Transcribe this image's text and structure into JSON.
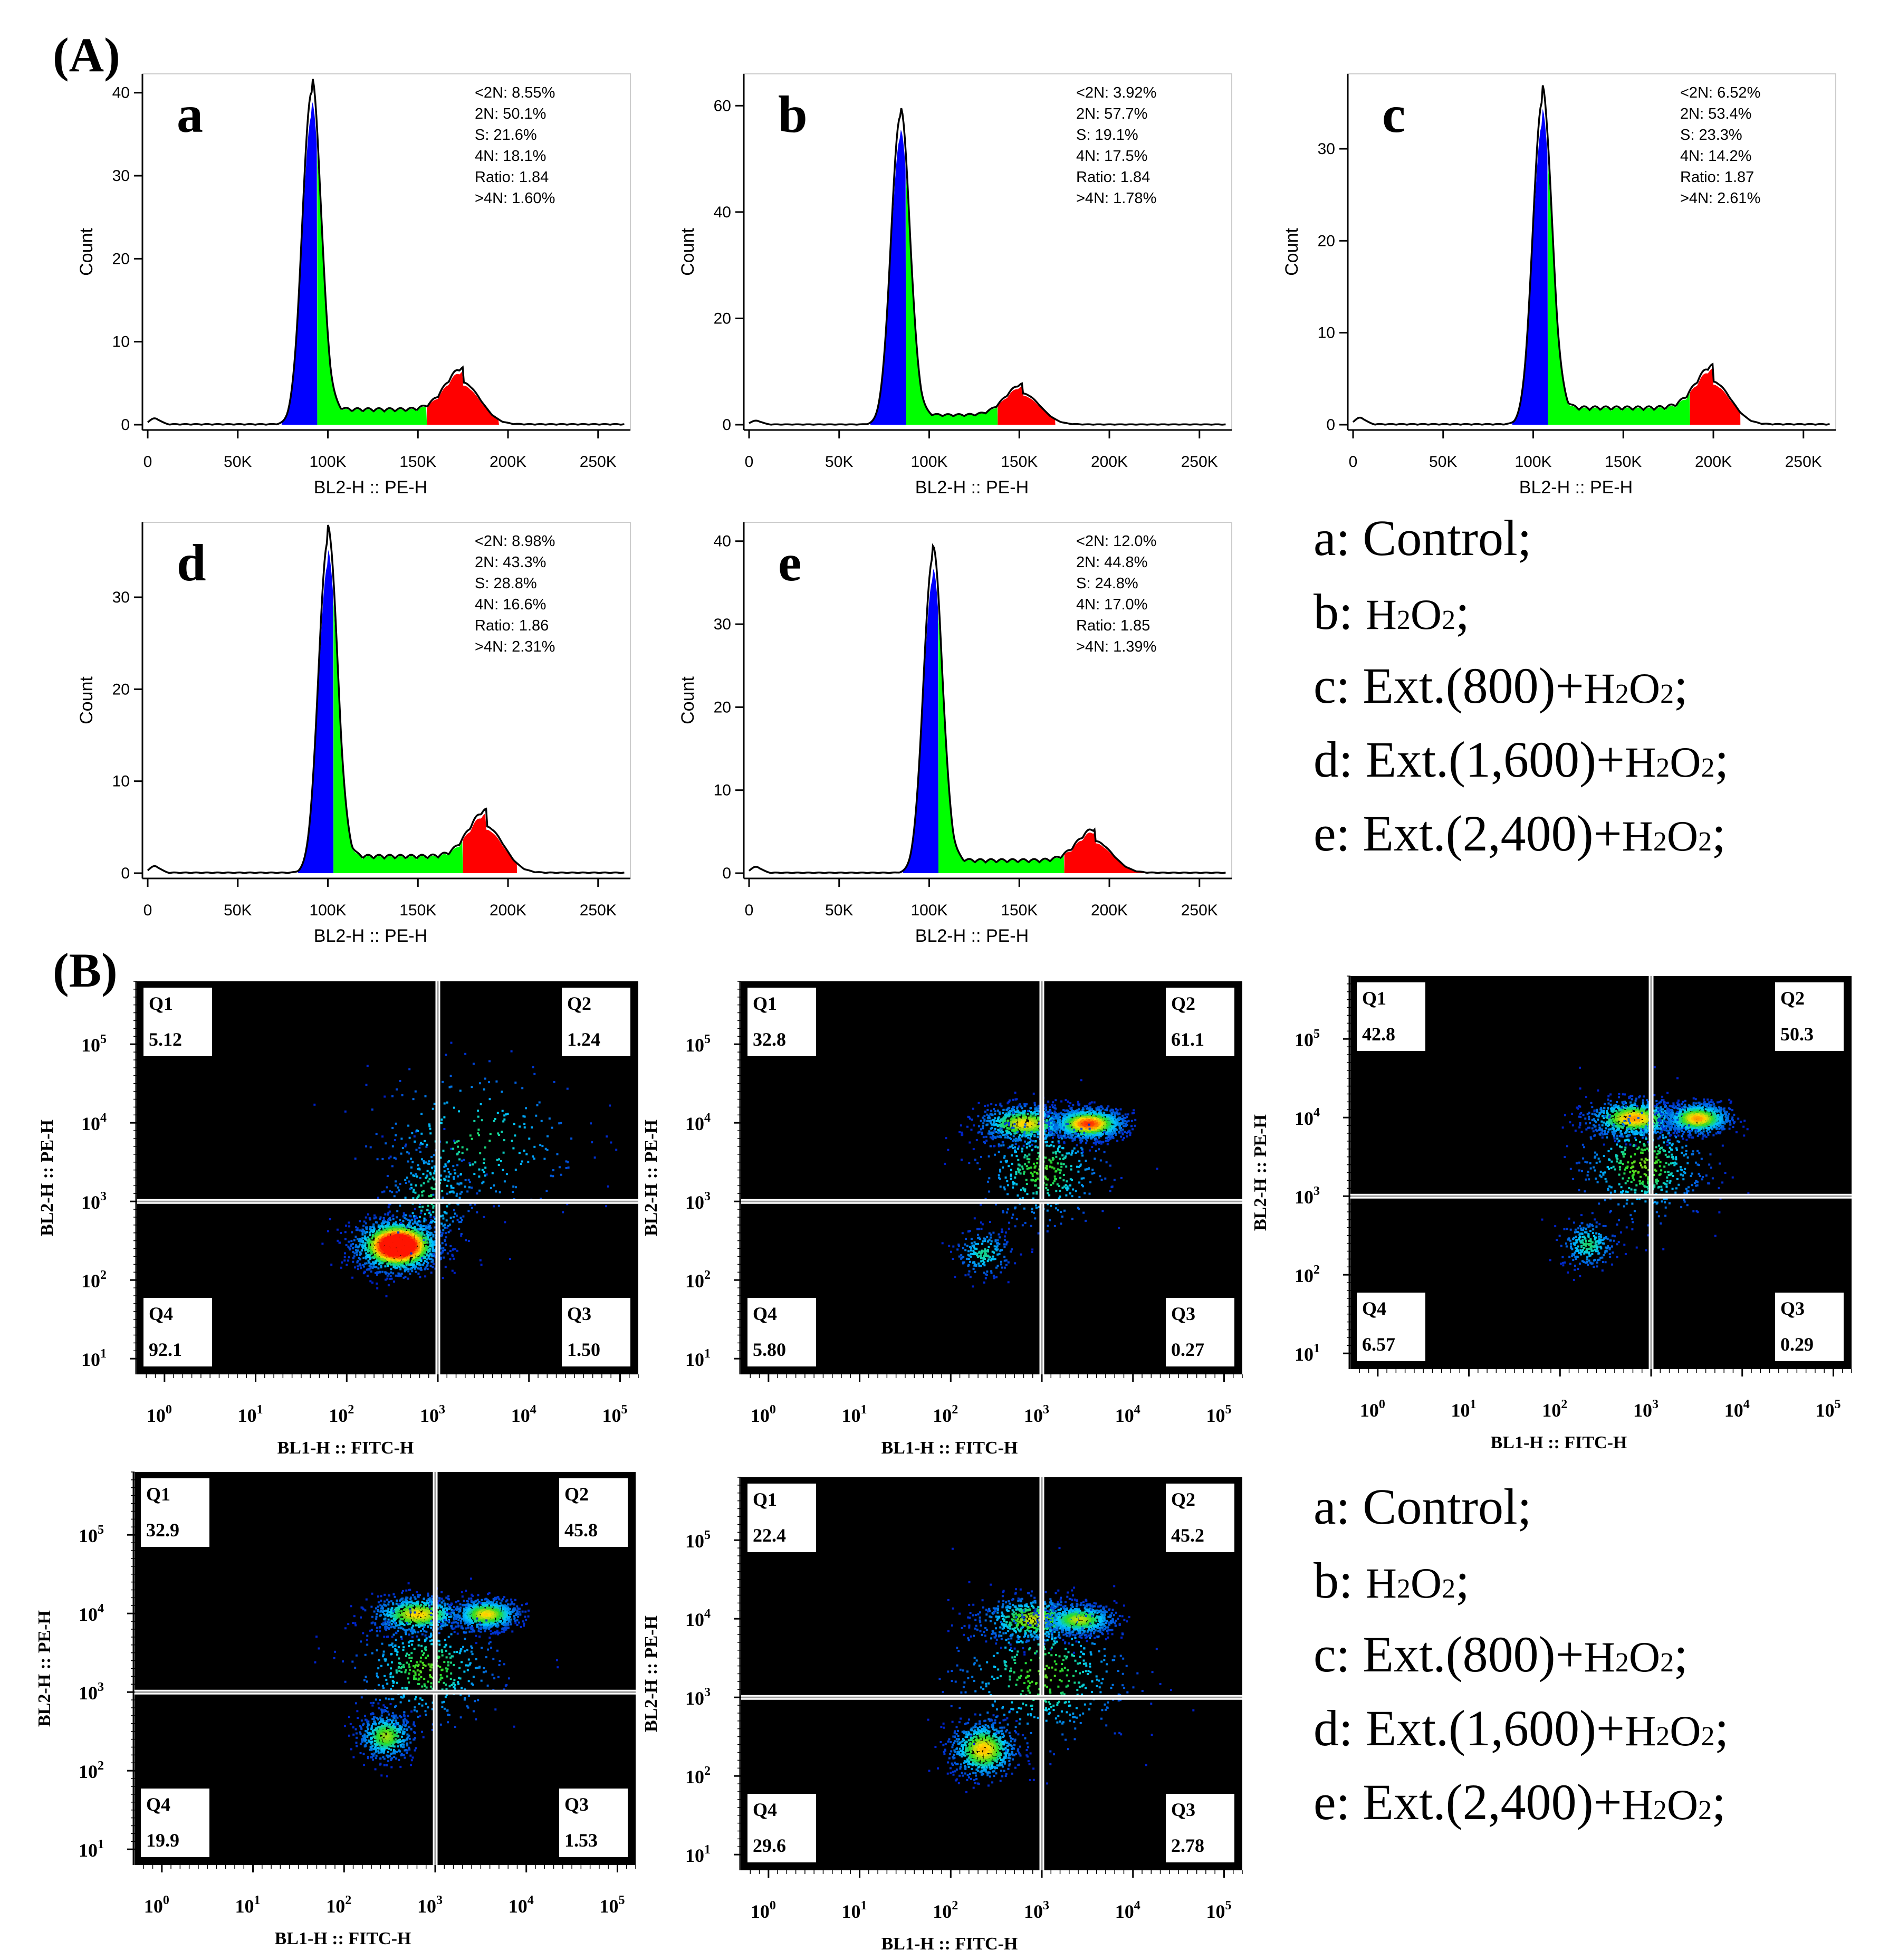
{
  "panel_A_label": "(A)",
  "panel_B_label": "(B)",
  "legend": [
    {
      "key": "a:",
      "text": "Control;",
      "formula": false
    },
    {
      "key": "b:",
      "text": "",
      "formula": true
    },
    {
      "key": "c:",
      "text": "Ext.(800)+",
      "formula": true
    },
    {
      "key": "d:",
      "text": "Ext.(1,600)+",
      "formula": true
    },
    {
      "key": "e:",
      "text": "Ext.(2,400)+",
      "formula": true
    }
  ],
  "chart_data": {
    "histograms": {
      "type": "area",
      "x_axis_label": "BL2-H :: PE-H",
      "y_axis_label": "Count",
      "xlim": [
        0,
        265000
      ],
      "x_ticks": [
        {
          "value": 0,
          "label": "0"
        },
        {
          "value": 50000,
          "label": "50K"
        },
        {
          "value": 100000,
          "label": "100K"
        },
        {
          "value": 150000,
          "label": "150K"
        },
        {
          "value": 200000,
          "label": "200K"
        },
        {
          "value": 250000,
          "label": "250K"
        }
      ],
      "region_colors": {
        "sub_G1": "#0000ff",
        "S": "#00ff00",
        "G2M": "#ff0000"
      },
      "panels": [
        {
          "letter": "a",
          "ymax": 41,
          "y_ticks": [
            0,
            10,
            20,
            30,
            40
          ],
          "g1_peak": 91000,
          "g1_height": 40,
          "g2_peak": 175000,
          "g2_height": 5,
          "s_level": 1.6,
          "s_end": 155000,
          "g2_end": 195000,
          "stats": [
            "<2N: 8.55%",
            "2N: 50.1%",
            "S: 21.6%",
            "4N: 18.1%",
            "Ratio: 1.84",
            ">4N: 1.60%"
          ]
        },
        {
          "letter": "b",
          "ymax": 64,
          "y_ticks": [
            0,
            20,
            40,
            60
          ],
          "g1_peak": 84000,
          "g1_height": 58,
          "g2_peak": 152000,
          "g2_height": 5.8,
          "s_level": 1.6,
          "s_end": 138000,
          "g2_end": 170000,
          "stats": [
            "<2N: 3.92%",
            "2N: 57.7%",
            "S: 19.1%",
            "4N: 17.5%",
            "Ratio: 1.84",
            ">4N: 1.78%"
          ]
        },
        {
          "letter": "c",
          "ymax": 37,
          "y_ticks": [
            0,
            10,
            20,
            30
          ],
          "g1_peak": 105000,
          "g1_height": 35,
          "g2_peak": 200000,
          "g2_height": 4.6,
          "s_level": 1.6,
          "s_end": 187000,
          "g2_end": 215000,
          "stats": [
            "<2N: 6.52%",
            "2N: 53.4%",
            "S: 23.3%",
            "4N: 14.2%",
            "Ratio: 1.87",
            ">4N: 2.61%"
          ]
        },
        {
          "letter": "d",
          "ymax": 37,
          "y_ticks": [
            0,
            10,
            20,
            30
          ],
          "g1_peak": 100000,
          "g1_height": 36,
          "g2_peak": 188000,
          "g2_height": 5,
          "s_level": 1.6,
          "s_end": 175000,
          "g2_end": 205000,
          "stats": [
            "<2N: 8.98%",
            "2N: 43.3%",
            "S: 28.8%",
            "4N: 16.6%",
            "Ratio: 1.86",
            ">4N: 2.31%"
          ]
        },
        {
          "letter": "e",
          "ymax": 41,
          "y_ticks": [
            0,
            10,
            20,
            30,
            40
          ],
          "g1_peak": 102000,
          "g1_height": 38,
          "g2_peak": 192000,
          "g2_height": 3.8,
          "s_level": 1.3,
          "s_end": 175000,
          "g2_end": 220000,
          "stats": [
            "<2N: 12.0%",
            "2N: 44.8%",
            "S: 24.8%",
            "4N: 17.0%",
            "Ratio: 1.85",
            ">4N: 1.39%"
          ]
        }
      ]
    },
    "dot_plots": {
      "type": "scatter",
      "x_axis_label": "BL1-H :: FITC-H",
      "y_axis_label": "BL2-H :: PE-H",
      "x_log_range": [
        -0.3,
        5.2
      ],
      "y_log_range": [
        0.8,
        5.8
      ],
      "x_ticks": [
        0,
        1,
        2,
        3,
        4,
        5
      ],
      "y_ticks": [
        1,
        2,
        3,
        4,
        5
      ],
      "gate_x_log": 3.0,
      "gate_y_log": 3.0,
      "panels": [
        {
          "letter": "a",
          "Q1": {
            "label": "Q1",
            "value": "5.12"
          },
          "Q2": {
            "label": "Q2",
            "value": "1.24"
          },
          "Q3": {
            "label": "Q3",
            "value": "1.50"
          },
          "Q4": {
            "label": "Q4",
            "value": "92.1"
          },
          "clusters": [
            [
              2.55,
              2.45,
              0.22,
              0.16,
              0.8
            ],
            [
              2.9,
              3.1,
              0.25,
              0.35,
              0.1
            ],
            [
              3.4,
              3.8,
              0.6,
              0.5,
              0.1
            ]
          ]
        },
        {
          "letter": "b",
          "Q1": {
            "label": "Q1",
            "value": "32.8"
          },
          "Q2": {
            "label": "Q2",
            "value": "61.1"
          },
          "Q3": {
            "label": "Q3",
            "value": "0.27"
          },
          "Q4": {
            "label": "Q4",
            "value": "5.80"
          },
          "clusters": [
            [
              2.8,
              4.0,
              0.25,
              0.12,
              0.3
            ],
            [
              3.5,
              4.0,
              0.2,
              0.1,
              0.45
            ],
            [
              2.35,
              2.35,
              0.15,
              0.15,
              0.08
            ],
            [
              3.0,
              3.4,
              0.35,
              0.35,
              0.17
            ]
          ]
        },
        {
          "letter": "c",
          "Q1": {
            "label": "Q1",
            "value": "42.8"
          },
          "Q2": {
            "label": "Q2",
            "value": "50.3"
          },
          "Q3": {
            "label": "Q3",
            "value": "0.29"
          },
          "Q4": {
            "label": "Q4",
            "value": "6.57"
          },
          "clusters": [
            [
              2.8,
              4.0,
              0.25,
              0.12,
              0.35
            ],
            [
              3.5,
              4.0,
              0.18,
              0.1,
              0.35
            ],
            [
              2.3,
              2.4,
              0.15,
              0.15,
              0.1
            ],
            [
              2.9,
              3.4,
              0.35,
              0.35,
              0.2
            ]
          ]
        },
        {
          "letter": "d",
          "Q1": {
            "label": "Q1",
            "value": "32.9"
          },
          "Q2": {
            "label": "Q2",
            "value": "45.8"
          },
          "Q3": {
            "label": "Q3",
            "value": "1.53"
          },
          "Q4": {
            "label": "Q4",
            "value": "19.9"
          },
          "clusters": [
            [
              2.8,
              4.0,
              0.25,
              0.12,
              0.3
            ],
            [
              3.55,
              4.0,
              0.18,
              0.1,
              0.3
            ],
            [
              2.45,
              2.45,
              0.15,
              0.15,
              0.22
            ],
            [
              2.9,
              3.3,
              0.4,
              0.35,
              0.18
            ]
          ]
        },
        {
          "letter": "e",
          "Q1": {
            "label": "Q1",
            "value": "22.4"
          },
          "Q2": {
            "label": "Q2",
            "value": "45.2"
          },
          "Q3": {
            "label": "Q3",
            "value": "2.78"
          },
          "Q4": {
            "label": "Q4",
            "value": "29.6"
          },
          "clusters": [
            [
              2.9,
              4.0,
              0.3,
              0.15,
              0.25
            ],
            [
              3.4,
              4.0,
              0.2,
              0.1,
              0.25
            ],
            [
              2.35,
              2.35,
              0.18,
              0.18,
              0.32
            ],
            [
              3.0,
              3.3,
              0.5,
              0.45,
              0.18
            ]
          ]
        }
      ]
    }
  }
}
